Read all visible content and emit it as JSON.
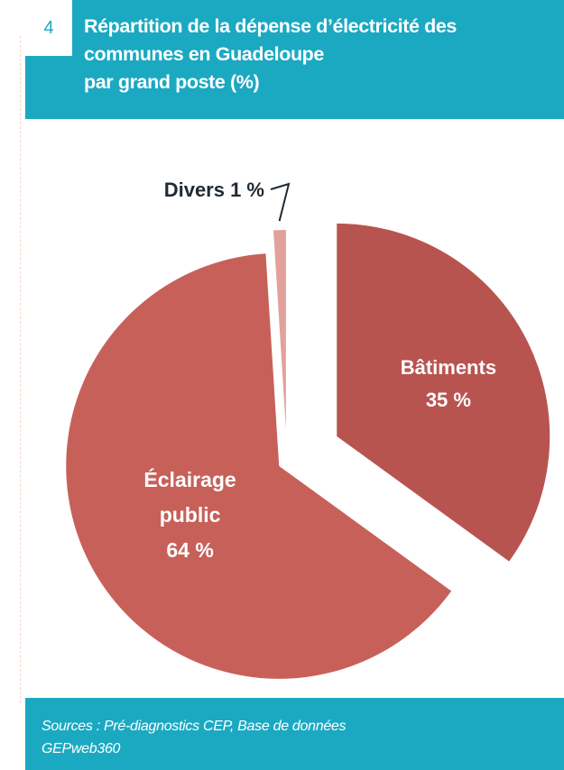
{
  "figure": {
    "number": "4",
    "title_lines": [
      "Répartition de la dépense d’électricité des",
      "communes en Guadeloupe",
      "par grand poste (%)"
    ],
    "source_lines": [
      "Sources : Pré-diagnostics CEP, Base de données",
      "GEPweb360"
    ]
  },
  "colors": {
    "header": "#1ba9c2",
    "batiments": "#b85450",
    "eclairage": "#c8605a",
    "divers": "#e2a19a",
    "label_text": "#ffffff",
    "outside_label": "#1f2a33"
  },
  "chart_data": {
    "type": "pie",
    "title": "Répartition de la dépense d’électricité des communes en Guadeloupe par grand poste (%)",
    "unit": "%",
    "slices": [
      {
        "name": "Bâtiments",
        "value": 35,
        "label_lines": [
          "Bâtiments",
          "35 %"
        ]
      },
      {
        "name": "Éclairage public",
        "value": 64,
        "label_lines": [
          "Éclairage",
          "public",
          "64 %"
        ]
      },
      {
        "name": "Divers",
        "value": 1,
        "label_lines": [
          "Divers 1 %"
        ]
      }
    ]
  }
}
